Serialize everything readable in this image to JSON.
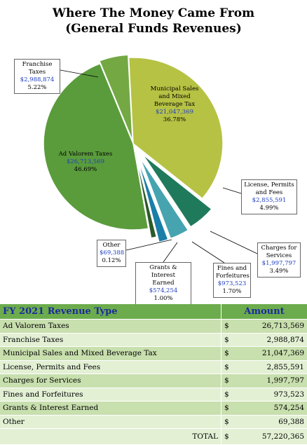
{
  "title": [
    "Where The Money Came From",
    "(General Funds Revenues)"
  ],
  "chart_data": {
    "type": "pie",
    "title": "Where The Money Came From (General Funds Revenues)",
    "slices": [
      {
        "name": "Municipal Sales and Mixed Beverage Tax",
        "label_lines": [
          "Municipal Sales",
          "and Mixed",
          "Beverage Tax"
        ],
        "amount": "$21,047,369",
        "percent": "36.78%",
        "value": 36.78,
        "color": "#b6c244",
        "explode": 0
      },
      {
        "name": "License, Permits and Fees",
        "label_lines": [
          "License, Permits",
          "and Fees"
        ],
        "amount": "$2,855,591",
        "percent": "4.99%",
        "value": 4.99,
        "color": "#1f7a5c",
        "explode": 20
      },
      {
        "name": "Charges for Services",
        "label_lines": [
          "Charges for",
          "Services"
        ],
        "amount": "$1,997,797",
        "percent": "3.49%",
        "value": 3.49,
        "color": "#46a4b0",
        "explode": 22
      },
      {
        "name": "Fines and Forfeitures",
        "label_lines": [
          "Fines and",
          "Forfeitures"
        ],
        "amount": "$973,523",
        "percent": "1.70%",
        "value": 1.7,
        "color": "#1a7ea8",
        "explode": 22
      },
      {
        "name": "Grants & Interest Earned",
        "label_lines": [
          "Grants & Interest",
          "Earned"
        ],
        "amount": "$574,254",
        "percent": "1.00%",
        "value": 1.0,
        "color": "#2d5a2a",
        "explode": 14
      },
      {
        "name": "Other",
        "label_lines": [
          "Other"
        ],
        "amount": "$69,388",
        "percent": "0.12%",
        "value": 0.12,
        "color": "#2a4a2a",
        "explode": 14
      },
      {
        "name": "Ad Valorem Taxes",
        "label_lines": [
          "Ad Valorem Taxes"
        ],
        "amount": "$26,713,569",
        "percent": "46.69%",
        "value": 46.69,
        "color": "#5a9c3c",
        "explode": 0
      },
      {
        "name": "Franchise Taxes",
        "label_lines": [
          "Franchise Taxes"
        ],
        "amount": "$2,988,874",
        "percent": "5.22%",
        "value": 5.22,
        "color": "#73a843",
        "explode": 4
      }
    ]
  },
  "table": {
    "header_name": "FY 2021 Revenue Type",
    "header_amount": "Amount",
    "rows": [
      {
        "name": "Ad Valorem Taxes",
        "dollar": "$",
        "amount": "26,713,569"
      },
      {
        "name": "Franchise Taxes",
        "dollar": "$",
        "amount": "2,988,874"
      },
      {
        "name": "Municipal Sales and Mixed Beverage Tax",
        "dollar": "$",
        "amount": "21,047,369"
      },
      {
        "name": "License, Permits and Fees",
        "dollar": "$",
        "amount": "2,855,591"
      },
      {
        "name": "Charges for Services",
        "dollar": "$",
        "amount": "1,997,797"
      },
      {
        "name": "Fines and Forfeitures",
        "dollar": "$",
        "amount": "973,523"
      },
      {
        "name": "Grants & Interest Earned",
        "dollar": "$",
        "amount": "574,254"
      },
      {
        "name": "Other",
        "dollar": "$",
        "amount": "69,388"
      }
    ],
    "total_label": "TOTAL",
    "total_dollar": "$",
    "total_amount": "57,220,365"
  }
}
